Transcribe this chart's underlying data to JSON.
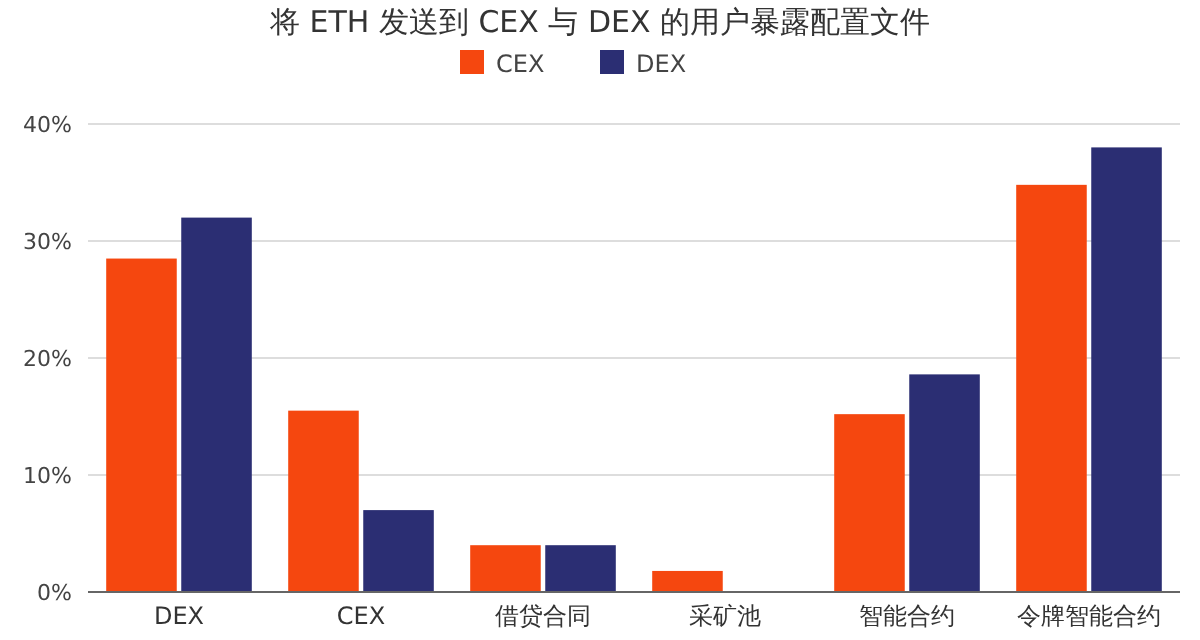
{
  "chart_data": {
    "type": "bar",
    "title": "将 ETH 发送到 CEX 与 DEX 的用户暴露配置文件",
    "categories": [
      "DEX",
      "CEX",
      "借贷合同",
      "采矿池",
      "智能合约",
      "令牌智能合约"
    ],
    "series": [
      {
        "name": "CEX",
        "color": "#f5470f",
        "values": [
          28.5,
          15.5,
          4,
          1.8,
          15.2,
          34.8
        ]
      },
      {
        "name": "DEX",
        "color": "#2b2e73",
        "values": [
          32,
          7,
          4,
          0,
          18.6,
          38
        ]
      }
    ],
    "ylim": [
      0,
      40
    ],
    "yticks": [
      {
        "value": 0,
        "label": "0%"
      },
      {
        "value": 10,
        "label": "10%"
      },
      {
        "value": 20,
        "label": "20%"
      },
      {
        "value": 30,
        "label": "30%"
      },
      {
        "value": 40,
        "label": "40%"
      }
    ],
    "grid": "y",
    "legend": "top"
  }
}
